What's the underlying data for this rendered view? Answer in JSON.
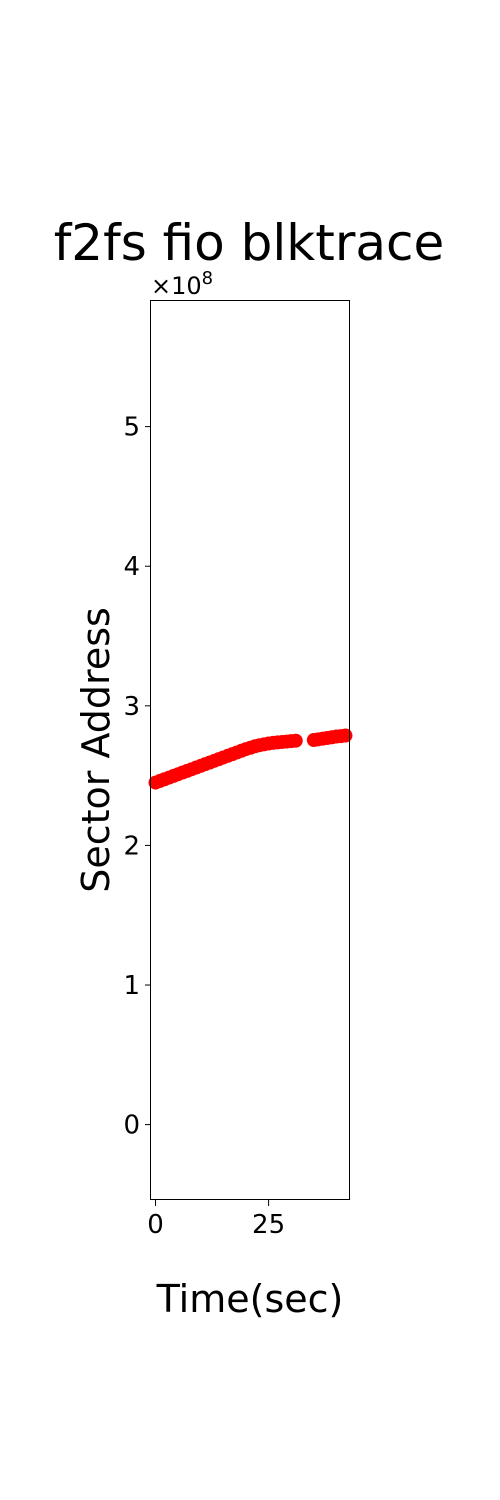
{
  "chart_data": {
    "type": "scatter",
    "title": "f2fs fio blktrace",
    "xlabel": "Time(sec)",
    "ylabel": "Sector Address",
    "y_offset_label": "×10",
    "y_offset_exponent": "8",
    "y_scale": 100000000,
    "xlim": [
      -1,
      43
    ],
    "ylim": [
      -0.54,
      5.9
    ],
    "x_ticks": [
      0,
      25
    ],
    "x_tick_labels": [
      "0",
      "25"
    ],
    "y_ticks": [
      0,
      1,
      2,
      3,
      4,
      5
    ],
    "y_tick_labels": [
      "0",
      "1",
      "2",
      "3",
      "4",
      "5"
    ],
    "grid": false,
    "legend": "none",
    "colors": {
      "series": "#ff0000",
      "axes": "#000000"
    },
    "series": [
      {
        "color": "#ff0000",
        "marker": "circle",
        "x": [
          0,
          1,
          2,
          3,
          4,
          5,
          6,
          7,
          8,
          9,
          10,
          11,
          12,
          13,
          14,
          15,
          16,
          17,
          18,
          19,
          20,
          21,
          22,
          23,
          24,
          25,
          26,
          27,
          28,
          29,
          30,
          31,
          35,
          36,
          37,
          38,
          39,
          40,
          41,
          42
        ],
        "y": [
          2.45,
          2.462,
          2.474,
          2.486,
          2.498,
          2.51,
          2.522,
          2.534,
          2.546,
          2.558,
          2.57,
          2.582,
          2.594,
          2.606,
          2.618,
          2.63,
          2.642,
          2.654,
          2.666,
          2.678,
          2.69,
          2.7,
          2.71,
          2.718,
          2.724,
          2.73,
          2.735,
          2.738,
          2.741,
          2.744,
          2.747,
          2.75,
          2.755,
          2.76,
          2.765,
          2.77,
          2.775,
          2.78,
          2.783,
          2.787
        ]
      }
    ]
  }
}
